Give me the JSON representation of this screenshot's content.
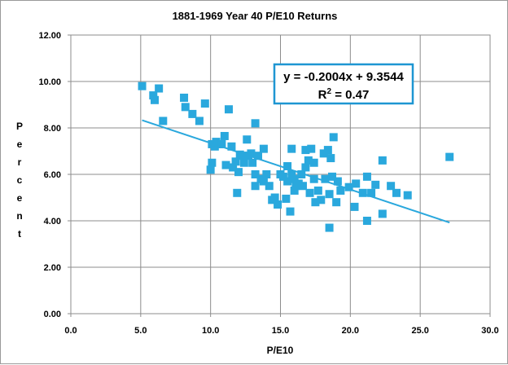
{
  "chart_data": {
    "type": "scatter",
    "title": "1881-1969 Year 40 P/E10 Returns",
    "xlabel": "P/E10",
    "ylabel": "Percent",
    "xlim": [
      0,
      30
    ],
    "ylim": [
      0,
      12
    ],
    "x_ticks": [
      "0.0",
      "5.0",
      "10.0",
      "15.0",
      "20.0",
      "25.0",
      "30.0"
    ],
    "y_ticks": [
      "0.00",
      "2.00",
      "4.00",
      "6.00",
      "8.00",
      "10.00",
      "12.00"
    ],
    "grid": "both",
    "series": [
      {
        "marker": "square",
        "color": "#2aa8dd",
        "points": [
          [
            5.1,
            9.8
          ],
          [
            5.9,
            9.4
          ],
          [
            6.0,
            9.2
          ],
          [
            6.3,
            9.7
          ],
          [
            6.6,
            8.3
          ],
          [
            8.1,
            9.3
          ],
          [
            8.2,
            8.9
          ],
          [
            8.7,
            8.6
          ],
          [
            9.2,
            8.3
          ],
          [
            9.6,
            9.05
          ],
          [
            10.0,
            6.2
          ],
          [
            10.1,
            6.5
          ],
          [
            10.1,
            7.3
          ],
          [
            10.3,
            7.2
          ],
          [
            10.4,
            7.4
          ],
          [
            10.6,
            7.3
          ],
          [
            10.8,
            7.3
          ],
          [
            11.0,
            7.65
          ],
          [
            11.1,
            6.4
          ],
          [
            11.3,
            8.8
          ],
          [
            11.5,
            7.2
          ],
          [
            11.6,
            6.3
          ],
          [
            11.8,
            6.55
          ],
          [
            11.9,
            5.2
          ],
          [
            12.0,
            6.1
          ],
          [
            12.1,
            6.85
          ],
          [
            12.3,
            6.8
          ],
          [
            12.4,
            6.5
          ],
          [
            12.6,
            7.5
          ],
          [
            12.7,
            6.8
          ],
          [
            12.9,
            6.9
          ],
          [
            13.0,
            6.5
          ],
          [
            13.2,
            6.0
          ],
          [
            13.2,
            5.5
          ],
          [
            13.2,
            8.2
          ],
          [
            13.4,
            6.8
          ],
          [
            13.6,
            5.8
          ],
          [
            13.8,
            7.1
          ],
          [
            13.8,
            5.7
          ],
          [
            14.0,
            6.0
          ],
          [
            14.2,
            5.5
          ],
          [
            14.4,
            4.9
          ],
          [
            14.6,
            5.0
          ],
          [
            14.8,
            4.7
          ],
          [
            15.0,
            6.0
          ],
          [
            15.2,
            5.9
          ],
          [
            15.4,
            4.95
          ],
          [
            15.5,
            6.35
          ],
          [
            15.5,
            5.7
          ],
          [
            15.7,
            4.4
          ],
          [
            15.8,
            7.1
          ],
          [
            15.8,
            6.0
          ],
          [
            16.0,
            5.8
          ],
          [
            16.0,
            5.3
          ],
          [
            16.1,
            5.5
          ],
          [
            16.3,
            5.6
          ],
          [
            16.5,
            6.0
          ],
          [
            16.6,
            5.5
          ],
          [
            16.8,
            7.05
          ],
          [
            16.8,
            6.3
          ],
          [
            17.0,
            6.6
          ],
          [
            17.1,
            5.2
          ],
          [
            17.2,
            7.1
          ],
          [
            17.4,
            6.5
          ],
          [
            17.4,
            5.8
          ],
          [
            17.5,
            4.8
          ],
          [
            17.7,
            5.3
          ],
          [
            17.9,
            4.9
          ],
          [
            18.1,
            6.9
          ],
          [
            18.2,
            5.8
          ],
          [
            18.4,
            7.05
          ],
          [
            18.5,
            3.7
          ],
          [
            18.5,
            5.15
          ],
          [
            18.6,
            6.7
          ],
          [
            18.7,
            5.9
          ],
          [
            18.8,
            7.6
          ],
          [
            19.0,
            4.8
          ],
          [
            19.1,
            5.7
          ],
          [
            19.3,
            5.3
          ],
          [
            19.9,
            5.45
          ],
          [
            20.3,
            4.6
          ],
          [
            20.4,
            5.6
          ],
          [
            20.9,
            5.2
          ],
          [
            21.2,
            5.9
          ],
          [
            21.2,
            4.0
          ],
          [
            21.5,
            5.2
          ],
          [
            21.8,
            5.55
          ],
          [
            22.3,
            4.3
          ],
          [
            22.3,
            6.6
          ],
          [
            22.9,
            5.5
          ],
          [
            23.3,
            5.2
          ],
          [
            24.1,
            5.1
          ],
          [
            27.1,
            6.75
          ]
        ]
      }
    ],
    "trendline": {
      "type": "linear",
      "slope": -0.2004,
      "intercept": 9.3544,
      "x_range": [
        5.1,
        27.1
      ],
      "color": "#2aa8dd"
    },
    "annotation": {
      "equation": "y = -0.2004x + 9.3544",
      "r_squared_prefix": "R",
      "r_squared_exp": "2",
      "r_squared_value": " = 0.47",
      "border_color": "#1e96d2"
    }
  }
}
